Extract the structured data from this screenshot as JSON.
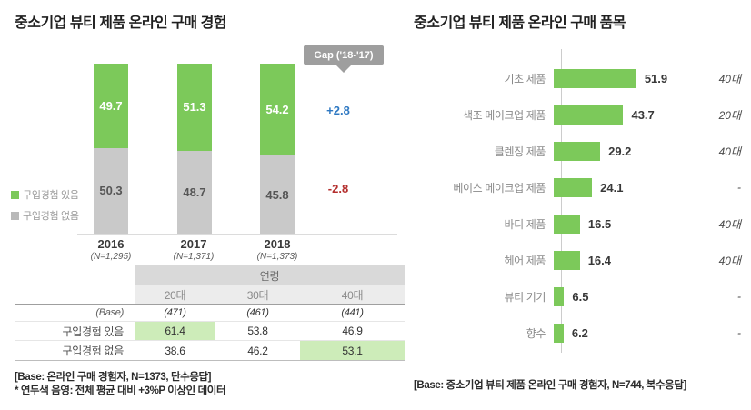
{
  "colors": {
    "bar_green": "#7cc95a",
    "bar_gray": "#c9c9c9",
    "highlight_green": "#cdecb9",
    "gap_positive_blue": "#2e78c2",
    "gap_negative_red": "#b42f2e",
    "badge_gray": "#9e9e9e"
  },
  "left": {
    "title": "중소기업 뷰티 제품 온라인 구매 경험",
    "gap_badge": "Gap ('18-'17)",
    "legend": [
      {
        "label": "구입경험 있음",
        "color": "#7cc95a"
      },
      {
        "label": "구입경험 없음",
        "color": "#b9b9b9"
      }
    ],
    "notes": [
      "[Base: 온라인 구매 경험자, N=1373, 단수응답]",
      "* 연두색 음영: 전체 평균 대비 +3%P 이상인 데이터"
    ]
  },
  "right": {
    "title": "중소기업 뷰티 제품 온라인 구매 품목",
    "note": "[Base: 중소기업 뷰티 제품 온라인 구매 경험자, N=744, 복수응답]"
  },
  "chart_data": [
    {
      "type": "bar",
      "stacked": true,
      "percent_total": 100,
      "title": "중소기업 뷰티 제품 온라인 구매 경험",
      "categories": [
        "2016",
        "2017",
        "2018"
      ],
      "category_notes": [
        "(N=1,295)",
        "(N=1,371)",
        "(N=1,373)"
      ],
      "series": [
        {
          "name": "구입경험 있음",
          "color": "#7cc95a",
          "values": [
            49.7,
            51.3,
            54.2
          ]
        },
        {
          "name": "구입경험 없음",
          "color": "#c9c9c9",
          "values": [
            50.3,
            48.7,
            45.8
          ]
        }
      ],
      "ylim": [
        0,
        100
      ],
      "legend_position": "left",
      "annotation": {
        "label": "Gap ('18-'17)",
        "gap_values": [
          "+2.8",
          "-2.8"
        ]
      }
    },
    {
      "type": "table",
      "column_group_header": "연령",
      "columns": [
        "20대",
        "30대",
        "40대"
      ],
      "rows": [
        {
          "label": "(Base)",
          "values": [
            "(471)",
            "(461)",
            "(441)"
          ],
          "highlight": []
        },
        {
          "label": "구입경험 있음",
          "values": [
            "61.4",
            "53.8",
            "46.9"
          ],
          "highlight": [
            0
          ]
        },
        {
          "label": "구입경험 없음",
          "values": [
            "38.6",
            "46.2",
            "53.1"
          ],
          "highlight": [
            2
          ]
        }
      ]
    },
    {
      "type": "bar",
      "orientation": "horizontal",
      "title": "중소기업 뷰티 제품 온라인 구매 품목",
      "categories": [
        "기초 제품",
        "색조 메이크업 제품",
        "클렌징 제품",
        "베이스 메이크업 제품",
        "바디 제품",
        "헤어 제품",
        "뷰티 기기",
        "향수"
      ],
      "values": [
        51.9,
        43.7,
        29.2,
        24.1,
        16.5,
        16.4,
        6.5,
        6.2
      ],
      "age_tags": [
        "40대",
        "20대",
        "40대",
        "-",
        "40대",
        "40대",
        "-",
        "-"
      ],
      "xlim": [
        0,
        60
      ],
      "grid": false
    }
  ]
}
